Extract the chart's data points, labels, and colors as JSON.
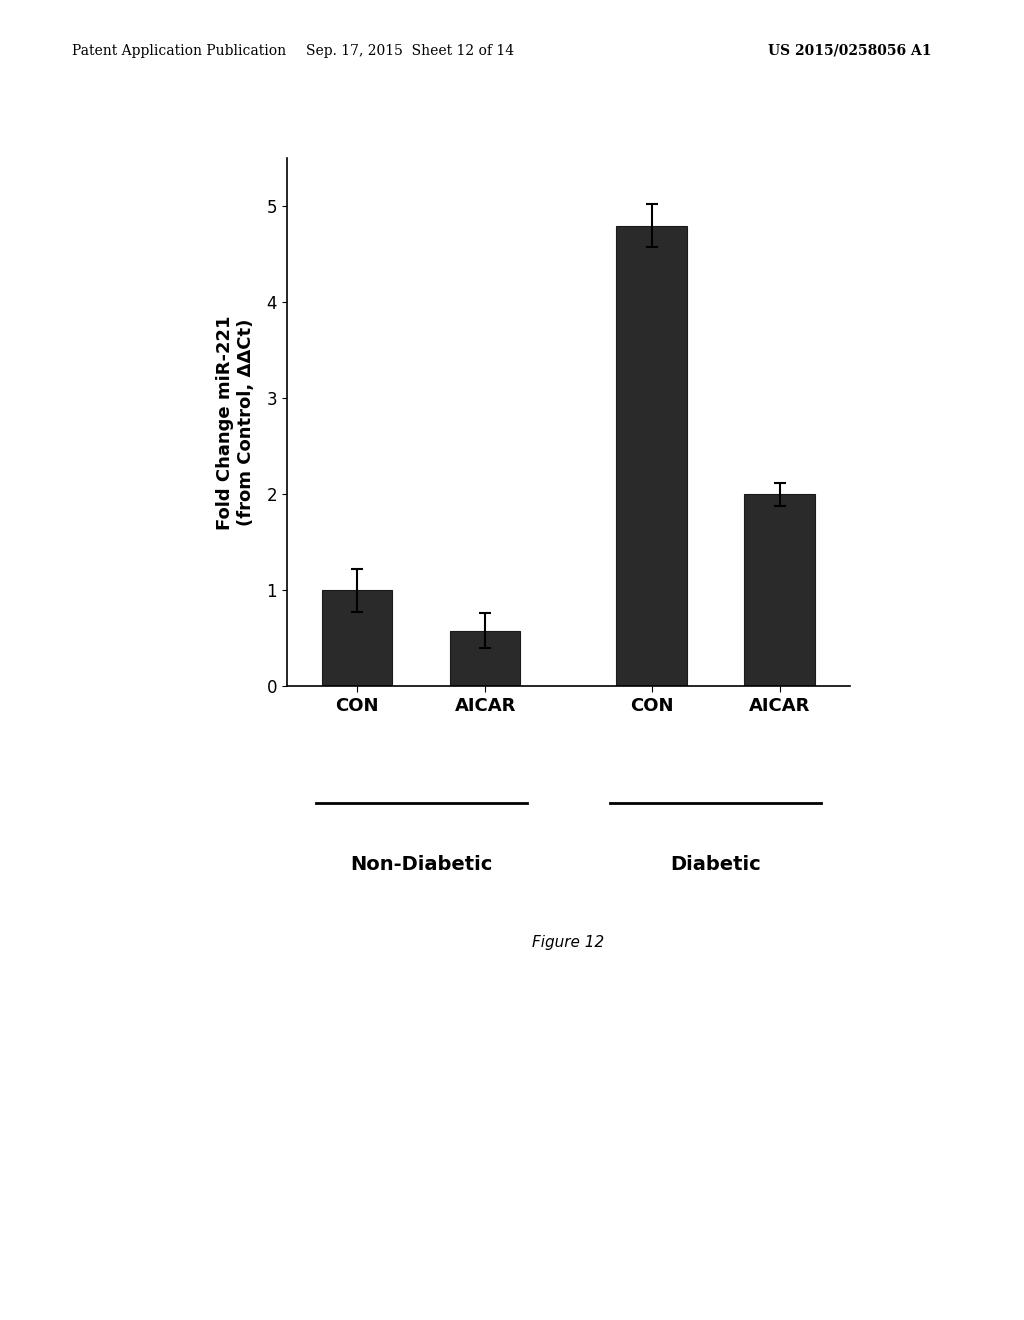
{
  "bars": [
    {
      "label": "CON",
      "group": "Non-Diabetic",
      "value": 1.0,
      "error": 0.22
    },
    {
      "label": "AICAR",
      "group": "Non-Diabetic",
      "value": 0.58,
      "error": 0.18
    },
    {
      "label": "CON",
      "group": "Diabetic",
      "value": 4.8,
      "error": 0.22
    },
    {
      "label": "AICAR",
      "group": "Diabetic",
      "value": 2.0,
      "error": 0.12
    }
  ],
  "bar_color": "#2a2a2a",
  "bar_width": 0.55,
  "ylabel": "Fold Change miR-221\n(from Control, ΔΔCt)",
  "yticks": [
    0,
    1,
    2,
    3,
    4,
    5
  ],
  "ylim": [
    0,
    5.5
  ],
  "xtick_labels": [
    "CON",
    "AICAR",
    "CON",
    "AICAR"
  ],
  "group_labels": [
    "Non-Diabetic",
    "Diabetic"
  ],
  "figure_caption": "Figure 12",
  "header_left": "Patent Application Publication",
  "header_mid": "Sep. 17, 2015  Sheet 12 of 14",
  "header_right": "US 2015/0258056 A1",
  "background_color": "#ffffff",
  "bar_edge_color": "#1a1a1a",
  "error_cap_size": 4,
  "error_linewidth": 1.5,
  "ylabel_fontsize": 13,
  "ylabel_fontweight": "bold",
  "xtick_fontsize": 13,
  "xtick_fontweight": "bold",
  "group_label_fontsize": 14,
  "group_label_fontweight": "bold",
  "ytick_fontsize": 12,
  "caption_fontsize": 11,
  "header_fontsize": 10,
  "positions": [
    0,
    1,
    2.3,
    3.3
  ],
  "xlim": [
    -0.55,
    3.85
  ]
}
